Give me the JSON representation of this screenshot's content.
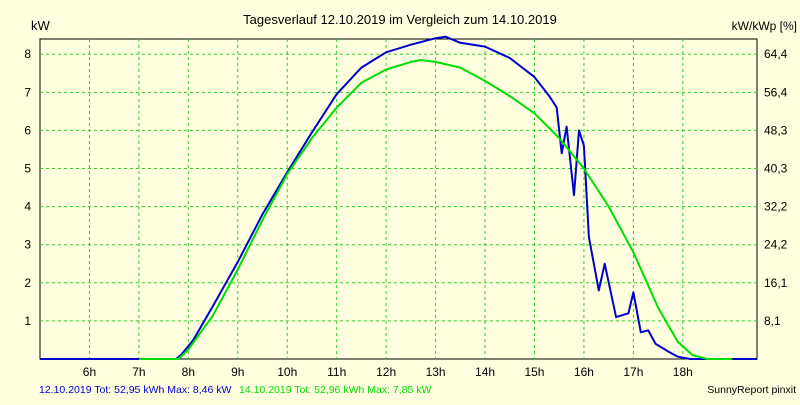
{
  "chart_data": {
    "type": "line",
    "title": "Tagesverlauf 12.10.2019 im Vergleich zum 14.10.2019",
    "ylabel_left": "kW",
    "ylabel_right": "kW/kWp [%]",
    "xlim": [
      5,
      19.5
    ],
    "ylim": [
      0,
      8.4
    ],
    "x_ticks": [
      6,
      7,
      8,
      9,
      10,
      11,
      12,
      13,
      14,
      15,
      16,
      17,
      18
    ],
    "x_tick_labels": [
      "6h",
      "7h",
      "8h",
      "9h",
      "10h",
      "11h",
      "12h",
      "13h",
      "14h",
      "15h",
      "16h",
      "17h",
      "18h"
    ],
    "y_ticks_left": [
      1,
      2,
      3,
      4,
      5,
      6,
      7,
      8
    ],
    "y_ticks_right": [
      {
        "y": 1,
        "label": "8,1"
      },
      {
        "y": 2,
        "label": "16,1"
      },
      {
        "y": 3,
        "label": "24,2"
      },
      {
        "y": 4,
        "label": "32,2"
      },
      {
        "y": 5,
        "label": "40,3"
      },
      {
        "y": 6,
        "label": "48,3"
      },
      {
        "y": 7,
        "label": "56,4"
      },
      {
        "y": 8,
        "label": "64,4"
      }
    ],
    "grid": true,
    "series": [
      {
        "name": "12.10.2019",
        "color": "#0000cc",
        "points": [
          [
            5.0,
            0
          ],
          [
            6.0,
            0
          ],
          [
            7.0,
            0
          ],
          [
            7.75,
            0
          ],
          [
            7.85,
            0.1
          ],
          [
            8.1,
            0.5
          ],
          [
            8.5,
            1.4
          ],
          [
            9.0,
            2.55
          ],
          [
            9.5,
            3.8
          ],
          [
            10.0,
            4.9
          ],
          [
            10.5,
            5.95
          ],
          [
            11.0,
            6.95
          ],
          [
            11.5,
            7.65
          ],
          [
            12.0,
            8.05
          ],
          [
            12.5,
            8.25
          ],
          [
            13.0,
            8.42
          ],
          [
            13.2,
            8.46
          ],
          [
            13.5,
            8.3
          ],
          [
            14.0,
            8.2
          ],
          [
            14.5,
            7.9
          ],
          [
            15.0,
            7.4
          ],
          [
            15.3,
            6.9
          ],
          [
            15.45,
            6.6
          ],
          [
            15.55,
            5.4
          ],
          [
            15.65,
            6.1
          ],
          [
            15.8,
            4.3
          ],
          [
            15.9,
            6.0
          ],
          [
            16.0,
            5.6
          ],
          [
            16.1,
            3.2
          ],
          [
            16.3,
            1.8
          ],
          [
            16.42,
            2.5
          ],
          [
            16.65,
            1.1
          ],
          [
            16.9,
            1.2
          ],
          [
            17.0,
            1.75
          ],
          [
            17.15,
            0.7
          ],
          [
            17.3,
            0.75
          ],
          [
            17.45,
            0.4
          ],
          [
            17.7,
            0.2
          ],
          [
            17.9,
            0.06
          ],
          [
            18.15,
            0
          ],
          [
            18.5,
            0
          ],
          [
            19.5,
            0
          ]
        ]
      },
      {
        "name": "14.10.2019",
        "color": "#00dd00",
        "points": [
          [
            7.0,
            0
          ],
          [
            7.8,
            0
          ],
          [
            8.0,
            0.25
          ],
          [
            8.5,
            1.15
          ],
          [
            9.0,
            2.35
          ],
          [
            9.5,
            3.65
          ],
          [
            10.0,
            4.85
          ],
          [
            10.5,
            5.8
          ],
          [
            11.0,
            6.6
          ],
          [
            11.5,
            7.25
          ],
          [
            12.0,
            7.6
          ],
          [
            12.5,
            7.8
          ],
          [
            12.7,
            7.85
          ],
          [
            13.0,
            7.8
          ],
          [
            13.5,
            7.65
          ],
          [
            14.0,
            7.3
          ],
          [
            14.5,
            6.9
          ],
          [
            15.0,
            6.45
          ],
          [
            15.5,
            5.8
          ],
          [
            16.0,
            5.0
          ],
          [
            16.5,
            4.0
          ],
          [
            17.0,
            2.8
          ],
          [
            17.5,
            1.35
          ],
          [
            17.9,
            0.45
          ],
          [
            18.2,
            0.1
          ],
          [
            18.5,
            0
          ],
          [
            19.0,
            0
          ]
        ]
      }
    ]
  },
  "footer": {
    "series1_text": "12.10.2019 Tot: 52,95 kWh Max: 8,46 kW",
    "series2_text": "14.10.2019 Tot: 52,96 kWh Max: 7,85 kW",
    "series1_color": "#0000cc",
    "series2_color": "#00dd00",
    "credit": "SunnyReport pinxit"
  },
  "colors": {
    "plot_background": "#ffffe0",
    "grid": "#33cc33",
    "axis": "#000000"
  }
}
